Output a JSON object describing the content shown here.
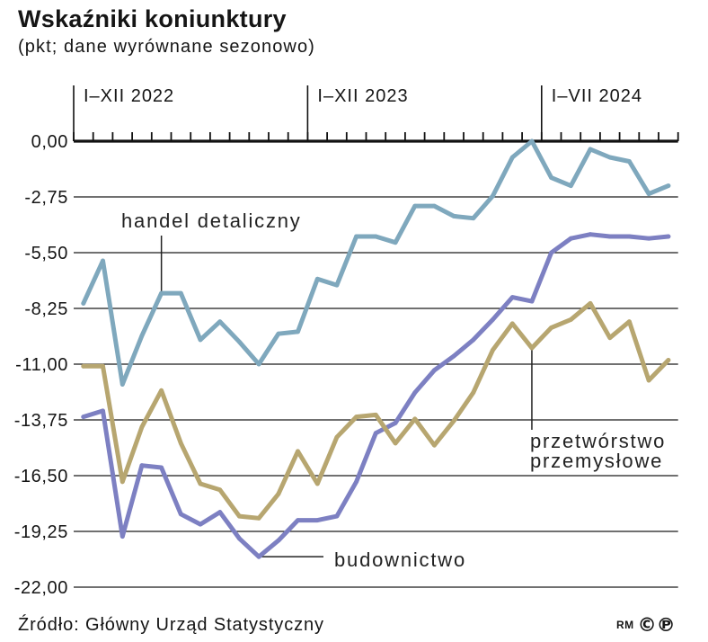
{
  "chart_data": {
    "type": "line",
    "title": "Wskaźniki koniunktury",
    "subtitle": "(pkt; dane wyrównane sezonowo)",
    "x": [
      "2022-01",
      "2022-02",
      "2022-03",
      "2022-04",
      "2022-05",
      "2022-06",
      "2022-07",
      "2022-08",
      "2022-09",
      "2022-10",
      "2022-11",
      "2022-12",
      "2023-01",
      "2023-02",
      "2023-03",
      "2023-04",
      "2023-05",
      "2023-06",
      "2023-07",
      "2023-08",
      "2023-09",
      "2023-10",
      "2023-11",
      "2023-12",
      "2024-01",
      "2024-02",
      "2024-03",
      "2024-04",
      "2024-05",
      "2024-06",
      "2024-07"
    ],
    "x_periods": [
      {
        "label": "I–XII 2022",
        "start": "2022-01"
      },
      {
        "label": "I–XII 2023",
        "start": "2023-01"
      },
      {
        "label": "I–VII 2024",
        "start": "2024-01"
      }
    ],
    "ylim": [
      -22,
      0
    ],
    "yticks": [
      {
        "value": 0,
        "label": "0,00"
      },
      {
        "value": -2.75,
        "label": "-2,75"
      },
      {
        "value": -5.5,
        "label": "-5,50"
      },
      {
        "value": -8.25,
        "label": "-8,25"
      },
      {
        "value": -11,
        "label": "-11,00"
      },
      {
        "value": -13.75,
        "label": "-13,75"
      },
      {
        "value": -16.5,
        "label": "-16,50"
      },
      {
        "value": -19.25,
        "label": "-19,25"
      },
      {
        "value": -22,
        "label": "-22,00"
      }
    ],
    "grid": true,
    "series": [
      {
        "name": "handel detaliczny",
        "color": "#7fa8bd",
        "values": [
          -8.0,
          -5.9,
          -12.0,
          -9.6,
          -7.5,
          -7.5,
          -9.8,
          -8.9,
          -9.9,
          -11.0,
          -9.5,
          -9.4,
          -6.8,
          -7.1,
          -4.7,
          -4.7,
          -5.0,
          -3.2,
          -3.2,
          -3.7,
          -3.8,
          -2.7,
          -0.8,
          0.0,
          -1.8,
          -2.2,
          -0.4,
          -0.8,
          -1.0,
          -2.6,
          -2.2
        ]
      },
      {
        "name": "budownictwo",
        "color": "#7d80c2",
        "values": [
          -13.6,
          -13.3,
          -19.5,
          -16.0,
          -16.1,
          -18.4,
          -18.9,
          -18.3,
          -19.6,
          -20.5,
          -19.7,
          -18.7,
          -18.7,
          -18.5,
          -16.8,
          -14.4,
          -13.9,
          -12.4,
          -11.3,
          -10.6,
          -9.8,
          -8.8,
          -7.7,
          -7.9,
          -5.5,
          -4.8,
          -4.6,
          -4.7,
          -4.7,
          -4.8,
          -4.7
        ]
      },
      {
        "name": "przetwórstwo przemysłowe",
        "color": "#b7a670",
        "values": [
          -11.1,
          -11.1,
          -16.8,
          -14.1,
          -12.3,
          -14.9,
          -16.9,
          -17.2,
          -18.5,
          -18.6,
          -17.4,
          -15.3,
          -16.9,
          -14.6,
          -13.6,
          -13.5,
          -14.9,
          -13.7,
          -15.0,
          -13.8,
          -12.4,
          -10.3,
          -9.0,
          -10.2,
          -9.2,
          -8.8,
          -8.0,
          -9.7,
          -8.9,
          -11.8,
          -10.8
        ]
      }
    ]
  },
  "footer": {
    "source": "Źródło: Główny Urząd Statystyczny",
    "logo_text": "RM",
    "logo_symbols": "©℗"
  }
}
